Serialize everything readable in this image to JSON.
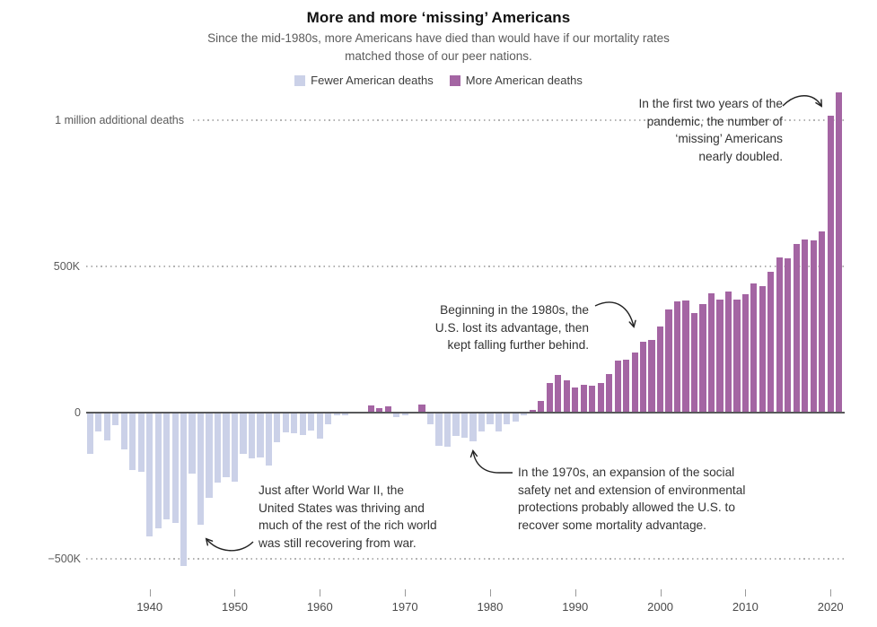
{
  "header": {
    "title": "More and more ‘missing’ Americans",
    "subtitle_line1": "Since the mid-1980s, more Americans have died than would have if our mortality rates",
    "subtitle_line2": "matched those of our peer nations."
  },
  "legend": {
    "fewer_label": "Fewer American deaths",
    "more_label": "More American deaths",
    "fewer_color": "#cbd1e8",
    "more_color": "#a465a3"
  },
  "axes": {
    "y_label_1m": "1 million additional deaths",
    "y_label_500k": "500K",
    "y_label_0": "0",
    "y_label_neg500k": "−500K",
    "x_ticks": [
      "1940",
      "1950",
      "1960",
      "1970",
      "1980",
      "1990",
      "2000",
      "2010",
      "2020"
    ]
  },
  "annotations": {
    "pandemic": {
      "lines": [
        "In the first two years of the",
        "pandemic, the number of",
        "‘missing’ Americans",
        "nearly doubled."
      ]
    },
    "eighties": {
      "lines": [
        "Beginning in the 1980s, the",
        "U.S. lost its advantage, then",
        "kept falling further behind."
      ]
    },
    "wwii": {
      "lines": [
        "Just after World War II, the",
        "United States was thriving and",
        "much of the rest of the rich world",
        "was still recovering from war."
      ]
    },
    "seventies": {
      "lines": [
        "In the 1970s, an expansion of the social",
        "safety net and extension of environmental",
        "protections probably allowed the U.S. to",
        "recover some mortality advantage."
      ]
    }
  },
  "chart_data": {
    "type": "bar",
    "title": "More and more ‘missing’ Americans",
    "units": "thousands of additional American deaths vs. peer nations (negative = fewer American deaths)",
    "ylim_thousands": [
      -550,
      1100
    ],
    "gridlines_thousands": [
      1000,
      500,
      0,
      -500
    ],
    "gridline_labels": [
      "1 million additional deaths",
      "500K",
      "0",
      "−500K"
    ],
    "legend_entries": [
      "Fewer American deaths",
      "More American deaths"
    ],
    "negative_color": "#cbd1e8",
    "positive_color": "#a465a3",
    "x": [
      1933,
      1934,
      1935,
      1936,
      1937,
      1938,
      1939,
      1940,
      1941,
      1942,
      1943,
      1944,
      1945,
      1946,
      1947,
      1948,
      1949,
      1950,
      1951,
      1952,
      1953,
      1954,
      1955,
      1956,
      1957,
      1958,
      1959,
      1960,
      1961,
      1962,
      1963,
      1964,
      1965,
      1966,
      1967,
      1968,
      1969,
      1970,
      1971,
      1972,
      1973,
      1974,
      1975,
      1976,
      1977,
      1978,
      1979,
      1980,
      1981,
      1982,
      1983,
      1984,
      1985,
      1986,
      1987,
      1988,
      1989,
      1990,
      1991,
      1992,
      1993,
      1994,
      1995,
      1996,
      1997,
      1998,
      1999,
      2000,
      2001,
      2002,
      2003,
      2004,
      2005,
      2006,
      2007,
      2008,
      2009,
      2010,
      2011,
      2012,
      2013,
      2014,
      2015,
      2016,
      2017,
      2018,
      2019,
      2020,
      2021
    ],
    "values_thousands": [
      -140,
      -63,
      -94,
      -43,
      -125,
      -196,
      -203,
      -423,
      -395,
      -365,
      -378,
      -525,
      -210,
      -383,
      -290,
      -240,
      -220,
      -235,
      -141,
      -156,
      -153,
      -182,
      -102,
      -66,
      -72,
      -77,
      -61,
      -90,
      -39,
      -10,
      -8,
      -3,
      2,
      25,
      15,
      22,
      -15,
      -8,
      2,
      28,
      -39,
      -112,
      -118,
      -80,
      -87,
      -97,
      -63,
      -39,
      -63,
      -41,
      -30,
      -8,
      10,
      39,
      102,
      129,
      110,
      85,
      95,
      93,
      100,
      133,
      177,
      180,
      207,
      241,
      248,
      294,
      354,
      381,
      384,
      340,
      370,
      407,
      385,
      414,
      387,
      404,
      442,
      431,
      483,
      531,
      529,
      577,
      591,
      588,
      621,
      1014,
      1094
    ]
  }
}
